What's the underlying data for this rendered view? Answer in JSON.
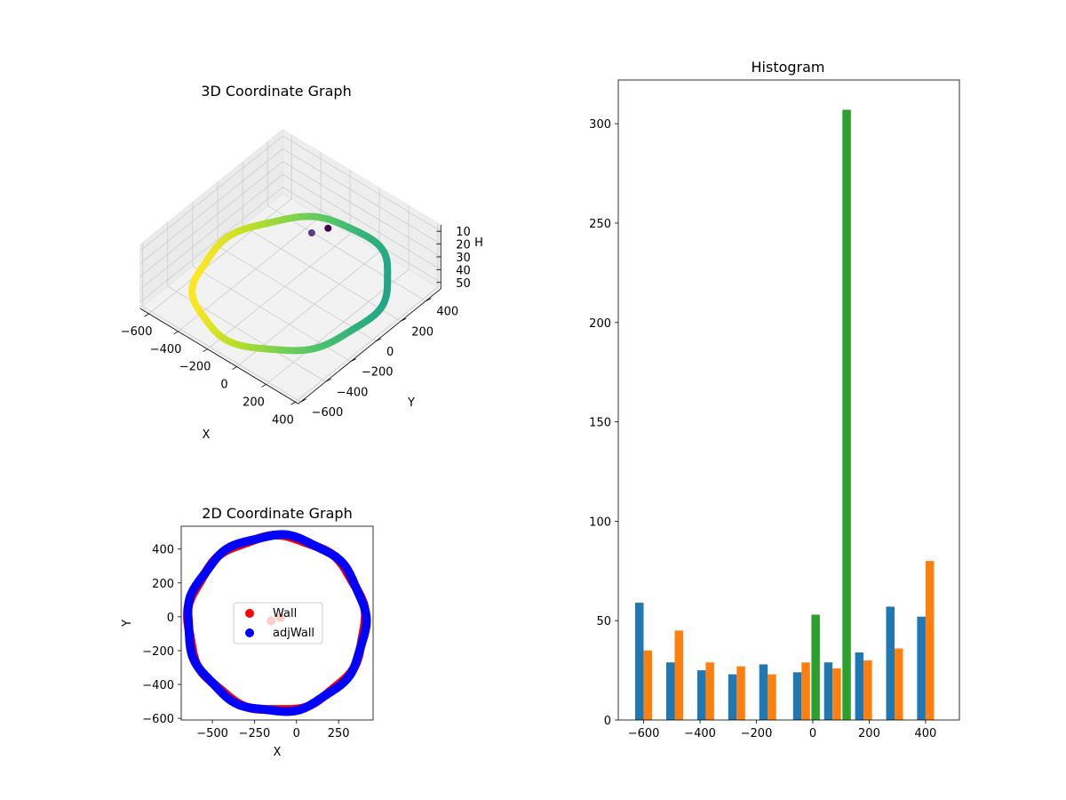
{
  "chart_data": [
    {
      "type": "scatter3d",
      "title": "3D Coordinate Graph",
      "xlabel": "X",
      "ylabel": "Y",
      "zlabel": "H",
      "xticks": [
        -600,
        -400,
        -200,
        0,
        200,
        400
      ],
      "yticks": [
        -600,
        -400,
        -200,
        0,
        200,
        400
      ],
      "zticks": [
        10,
        20,
        30,
        40,
        50
      ],
      "xlim": [
        -660,
        420
      ],
      "ylim": [
        -620,
        520
      ],
      "zlim": [
        5,
        55
      ],
      "zaxis_inverted": true,
      "colormap": "viridis",
      "trajectory": {
        "shape": "ellipse",
        "center": [
          -120,
          -40
        ],
        "radius_x": 520,
        "radius_y": 490,
        "height_range": [
          35,
          54
        ],
        "num_points": 420
      },
      "outlier_points": [
        {
          "x": -60,
          "y": 180,
          "h": 14,
          "color": "#440154"
        },
        {
          "x": -120,
          "y": 120,
          "h": 17,
          "color": "#5b3e88"
        }
      ]
    },
    {
      "type": "scatter",
      "title": "2D Coordinate Graph",
      "xlabel": "X",
      "ylabel": "Y",
      "xticks": [
        -500,
        -250,
        0,
        250
      ],
      "yticks": [
        -600,
        -400,
        -200,
        0,
        200,
        400
      ],
      "xlim": [
        -685,
        455
      ],
      "ylim": [
        -610,
        535
      ],
      "legend": {
        "position": "center",
        "entries": [
          "Wall",
          "adjWall"
        ]
      },
      "series": [
        {
          "name": "Wall",
          "color": "#ff0000",
          "shape": "circle",
          "center": [
            -120,
            -40
          ],
          "radius_x": 525,
          "radius_y": 515,
          "outliers": [
            [
              -150,
              -25
            ],
            [
              -95,
              -5
            ]
          ]
        },
        {
          "name": "adjWall",
          "color": "#0000ff",
          "shape": "circle",
          "center": [
            -120,
            -40
          ],
          "radius_x": 528,
          "radius_y": 520
        }
      ]
    },
    {
      "type": "bar",
      "title": "Histogram",
      "xticks": [
        -600,
        -400,
        -200,
        0,
        200,
        400
      ],
      "yticks": [
        0,
        50,
        100,
        150,
        200,
        250,
        300
      ],
      "xlim": [
        -690,
        520
      ],
      "ylim": [
        0,
        322
      ],
      "bar_width": 30,
      "series": [
        {
          "color": "#1f77b4",
          "bars": [
            {
              "x": -615,
              "value": 59
            },
            {
              "x": -505,
              "value": 29
            },
            {
              "x": -395,
              "value": 25
            },
            {
              "x": -285,
              "value": 23
            },
            {
              "x": -175,
              "value": 28
            },
            {
              "x": -55,
              "value": 24
            },
            {
              "x": 55,
              "value": 29
            },
            {
              "x": 165,
              "value": 34
            },
            {
              "x": 275,
              "value": 57
            },
            {
              "x": 385,
              "value": 52
            }
          ]
        },
        {
          "color": "#ff7f0e",
          "bars": [
            {
              "x": -585,
              "value": 35
            },
            {
              "x": -475,
              "value": 45
            },
            {
              "x": -365,
              "value": 29
            },
            {
              "x": -255,
              "value": 27
            },
            {
              "x": -145,
              "value": 23
            },
            {
              "x": -25,
              "value": 29
            },
            {
              "x": 85,
              "value": 26
            },
            {
              "x": 195,
              "value": 30
            },
            {
              "x": 305,
              "value": 36
            },
            {
              "x": 415,
              "value": 80
            }
          ]
        },
        {
          "color": "#2ca02c",
          "bars": [
            {
              "x": 10,
              "value": 53
            },
            {
              "x": 120,
              "value": 307
            }
          ]
        }
      ]
    }
  ]
}
